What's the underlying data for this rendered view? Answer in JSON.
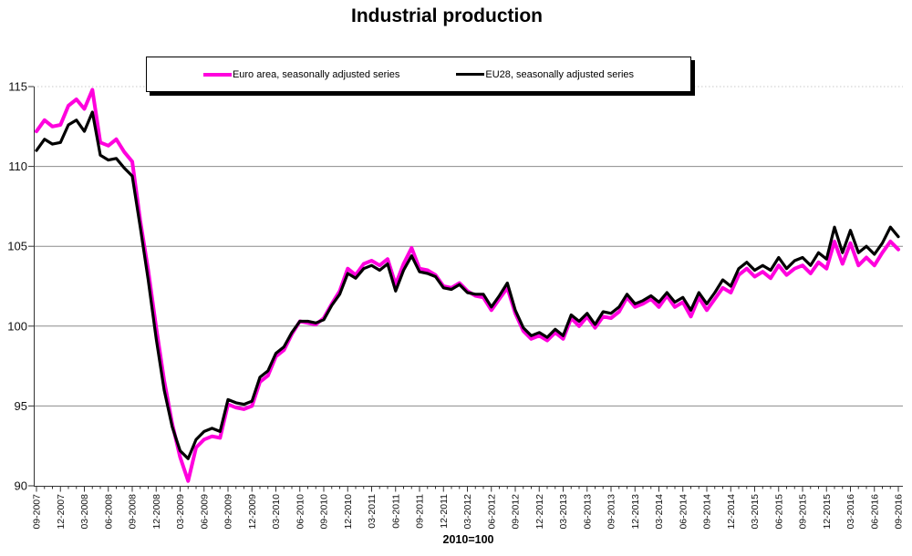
{
  "chart_data": {
    "type": "line",
    "title": "Industrial production",
    "unit_note": "2010=100",
    "frequency": "monthly",
    "x_range": "09-2007 to 09-2016",
    "legend_position": "top",
    "grid": "horizontal solid lines at 95,100,105,110; dotted line at 115",
    "ylim": [
      90,
      115
    ],
    "y_ticks": [
      90,
      95,
      100,
      105,
      110,
      115
    ],
    "x_tick_labels": [
      "09-2007",
      "12-2007",
      "03-2008",
      "06-2008",
      "09-2008",
      "12-2008",
      "03-2009",
      "06-2009",
      "09-2009",
      "12-2009",
      "03-2010",
      "06-2010",
      "09-2010",
      "12-2010",
      "03-2011",
      "06-2011",
      "09-2011",
      "12-2011",
      "03-2012",
      "06-2012",
      "09-2012",
      "12-2012",
      "03-2013",
      "06-2013",
      "09-2013",
      "12-2013",
      "03-2014",
      "06-2014",
      "09-2014",
      "12-2014",
      "03-2015",
      "06-2015",
      "09-2015",
      "12-2015",
      "03-2016",
      "06-2016",
      "09-2016"
    ],
    "series": [
      {
        "name": "Euro area, seasonally adjusted series",
        "color": "#ff00dd",
        "values": [
          112.2,
          112.9,
          112.5,
          112.6,
          113.8,
          114.2,
          113.6,
          114.8,
          111.5,
          111.3,
          111.7,
          110.9,
          110.3,
          106.6,
          103.5,
          99.9,
          96.6,
          93.9,
          91.8,
          90.3,
          92.4,
          92.9,
          93.1,
          93.0,
          95.1,
          94.9,
          94.8,
          95.0,
          96.5,
          96.9,
          98.1,
          98.5,
          99.5,
          100.3,
          100.2,
          100.1,
          100.5,
          101.4,
          102.2,
          103.6,
          103.2,
          103.9,
          104.1,
          103.8,
          104.2,
          102.6,
          103.9,
          104.9,
          103.6,
          103.5,
          103.2,
          102.5,
          102.4,
          102.7,
          102.2,
          101.9,
          101.8,
          101.0,
          101.7,
          102.4,
          100.8,
          99.7,
          99.2,
          99.4,
          99.1,
          99.6,
          99.2,
          100.5,
          100.0,
          100.6,
          99.9,
          100.6,
          100.5,
          100.9,
          101.8,
          101.2,
          101.4,
          101.7,
          101.2,
          101.9,
          101.2,
          101.5,
          100.6,
          101.8,
          101.0,
          101.7,
          102.4,
          102.1,
          103.2,
          103.6,
          103.1,
          103.4,
          103.0,
          103.8,
          103.2,
          103.6,
          103.8,
          103.3,
          104.0,
          103.6,
          105.3,
          103.9,
          105.2,
          103.8,
          104.3,
          103.8,
          104.6,
          105.3,
          104.8
        ]
      },
      {
        "name": "EU28, seasonally adjusted series",
        "color": "#000000",
        "values": [
          111.0,
          111.7,
          111.4,
          111.5,
          112.6,
          112.9,
          112.2,
          113.4,
          110.7,
          110.4,
          110.5,
          109.9,
          109.4,
          106.2,
          102.9,
          99.2,
          96.0,
          93.7,
          92.2,
          91.7,
          92.9,
          93.4,
          93.6,
          93.4,
          95.4,
          95.2,
          95.1,
          95.3,
          96.8,
          97.2,
          98.3,
          98.7,
          99.6,
          100.3,
          100.3,
          100.2,
          100.4,
          101.3,
          102.0,
          103.3,
          103.0,
          103.6,
          103.8,
          103.5,
          103.9,
          102.2,
          103.5,
          104.4,
          103.4,
          103.3,
          103.1,
          102.4,
          102.3,
          102.6,
          102.1,
          102.0,
          102.0,
          101.2,
          101.9,
          102.7,
          101.0,
          99.9,
          99.4,
          99.6,
          99.3,
          99.8,
          99.4,
          100.7,
          100.3,
          100.8,
          100.1,
          100.9,
          100.8,
          101.2,
          102.0,
          101.4,
          101.6,
          101.9,
          101.5,
          102.1,
          101.5,
          101.8,
          101.0,
          102.1,
          101.4,
          102.1,
          102.9,
          102.5,
          103.6,
          104.0,
          103.5,
          103.8,
          103.5,
          104.3,
          103.6,
          104.1,
          104.3,
          103.8,
          104.6,
          104.2,
          106.2,
          104.6,
          106.0,
          104.6,
          105.0,
          104.5,
          105.2,
          106.2,
          105.6
        ]
      }
    ]
  }
}
